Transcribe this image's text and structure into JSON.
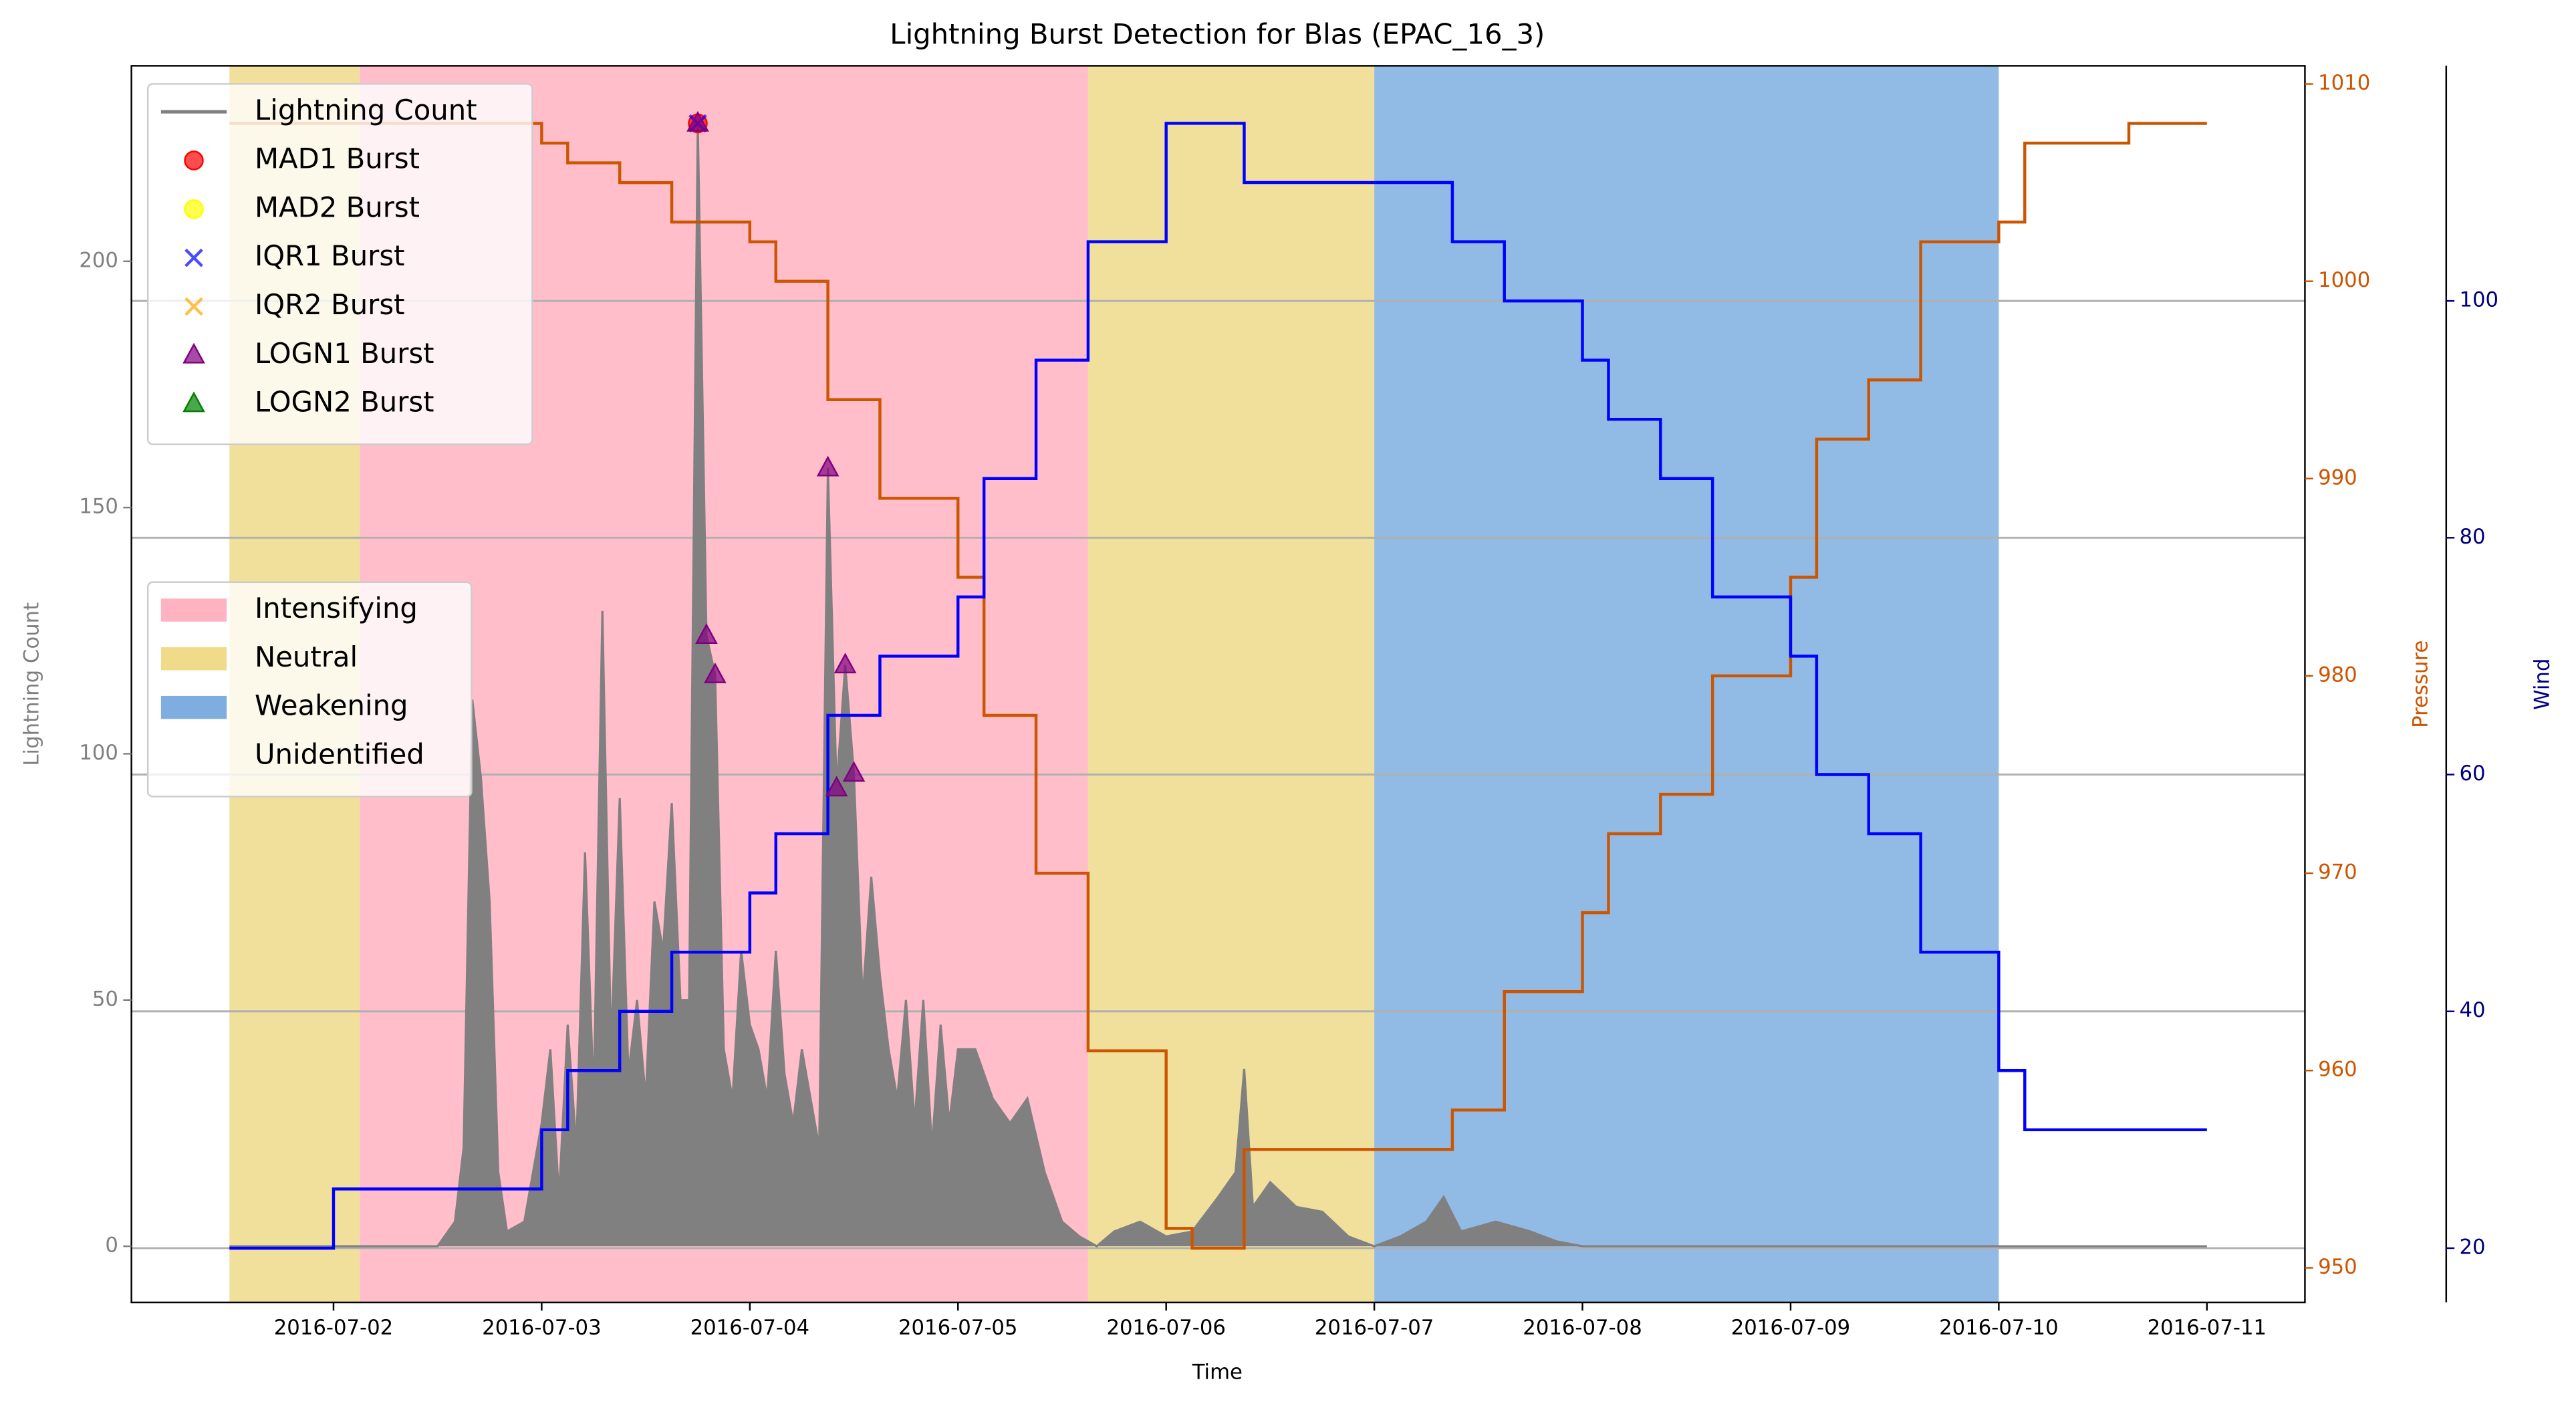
{
  "chart_data": {
    "type": "line",
    "title": "Lightning Burst Detection for Blas (EPAC_16_3)",
    "xlabel": "Time",
    "ylabel": "Lightning Count",
    "y2label": "Pressure",
    "y3label": "Wind",
    "xlim": [
      "2016-07-01T00:42",
      "2016-07-11T11:18"
    ],
    "xticks": [
      "2016-07-02",
      "2016-07-03",
      "2016-07-04",
      "2016-07-05",
      "2016-07-06",
      "2016-07-07",
      "2016-07-08",
      "2016-07-09",
      "2016-07-10",
      "2016-07-11"
    ],
    "ylim": [
      -11.4,
      239.7
    ],
    "yticks": [
      0,
      50,
      100,
      150,
      200
    ],
    "y2lim": [
      948.25,
      1010.92
    ],
    "y2ticks": [
      950,
      960,
      970,
      980,
      990,
      1000,
      1010
    ],
    "y3lim": [
      15.42,
      119.86
    ],
    "y3ticks": [
      20,
      40,
      60,
      80,
      100
    ],
    "ycolor": "gray",
    "y2color": "#cc5500",
    "y3color": "navy",
    "grid_axis": "y3",
    "legend_loc": "upper left",
    "regions_legend_loc": "center left",
    "regions": [
      {
        "name": "Intensifying",
        "color": "#ffb3c1",
        "spans": [
          [
            "2016-07-02T03:00",
            "2016-07-05T15:00"
          ]
        ]
      },
      {
        "name": "Neutral",
        "color": "#efdb8a",
        "spans": [
          [
            "2016-07-01T12:00",
            "2016-07-02T03:00"
          ],
          [
            "2016-07-05T15:00",
            "2016-07-07T00:00"
          ]
        ]
      },
      {
        "name": "Weakening",
        "color": "#7eaee0",
        "spans": [
          [
            "2016-07-07T00:00",
            "2016-07-10T00:00"
          ]
        ]
      },
      {
        "name": "Unidentified",
        "color": "#ffffff",
        "spans": []
      }
    ],
    "series": [
      {
        "name": "Lightning Count",
        "color": "gray",
        "axis": "y",
        "style": "area",
        "x": [
          "2016-07-01T12:00",
          "2016-07-02T12:00",
          "2016-07-02T14:00",
          "2016-07-02T15:00",
          "2016-07-02T16:00",
          "2016-07-02T17:00",
          "2016-07-02T18:00",
          "2016-07-02T19:00",
          "2016-07-02T20:00",
          "2016-07-02T22:00",
          "2016-07-03T00:00",
          "2016-07-03T01:00",
          "2016-07-03T02:00",
          "2016-07-03T03:00",
          "2016-07-03T04:00",
          "2016-07-03T05:00",
          "2016-07-03T06:00",
          "2016-07-03T07:00",
          "2016-07-03T08:00",
          "2016-07-03T09:00",
          "2016-07-03T10:00",
          "2016-07-03T11:00",
          "2016-07-03T12:00",
          "2016-07-03T13:00",
          "2016-07-03T14:00",
          "2016-07-03T15:00",
          "2016-07-03T16:00",
          "2016-07-03T17:00",
          "2016-07-03T18:00",
          "2016-07-03T19:00",
          "2016-07-03T20:00",
          "2016-07-03T21:00",
          "2016-07-03T22:00",
          "2016-07-03T23:00",
          "2016-07-04T00:00",
          "2016-07-04T01:00",
          "2016-07-04T02:00",
          "2016-07-04T03:00",
          "2016-07-04T04:00",
          "2016-07-04T05:00",
          "2016-07-04T06:00",
          "2016-07-04T07:00",
          "2016-07-04T08:00",
          "2016-07-04T09:00",
          "2016-07-04T10:00",
          "2016-07-04T11:00",
          "2016-07-04T12:00",
          "2016-07-04T13:00",
          "2016-07-04T14:00",
          "2016-07-04T15:00",
          "2016-07-04T16:00",
          "2016-07-04T17:00",
          "2016-07-04T18:00",
          "2016-07-04T19:00",
          "2016-07-04T20:00",
          "2016-07-04T21:00",
          "2016-07-04T22:00",
          "2016-07-04T23:00",
          "2016-07-05T00:00",
          "2016-07-05T02:00",
          "2016-07-05T04:00",
          "2016-07-05T06:00",
          "2016-07-05T08:00",
          "2016-07-05T10:00",
          "2016-07-05T12:00",
          "2016-07-05T14:00",
          "2016-07-05T16:00",
          "2016-07-05T18:00",
          "2016-07-05T21:00",
          "2016-07-06T00:00",
          "2016-07-06T03:00",
          "2016-07-06T06:00",
          "2016-07-06T08:00",
          "2016-07-06T09:00",
          "2016-07-06T10:00",
          "2016-07-06T12:00",
          "2016-07-06T15:00",
          "2016-07-06T18:00",
          "2016-07-06T21:00",
          "2016-07-07T00:00",
          "2016-07-07T03:00",
          "2016-07-07T06:00",
          "2016-07-07T08:00",
          "2016-07-07T10:00",
          "2016-07-07T14:00",
          "2016-07-07T18:00",
          "2016-07-07T21:00",
          "2016-07-08T00:00",
          "2016-07-09T00:00",
          "2016-07-11T00:00"
        ],
        "values": [
          0,
          0,
          5,
          20,
          111,
          95,
          70,
          15,
          3,
          5,
          25,
          40,
          10,
          45,
          20,
          80,
          30,
          129,
          40,
          91,
          35,
          50,
          30,
          70,
          60,
          90,
          50,
          50,
          228,
          124,
          116,
          40,
          30,
          60,
          45,
          40,
          30,
          60,
          35,
          25,
          40,
          30,
          20,
          158,
          93,
          118,
          96,
          50,
          75,
          55,
          40,
          30,
          50,
          25,
          50,
          20,
          45,
          25,
          40,
          40,
          30,
          25,
          30,
          15,
          5,
          2,
          0,
          3,
          5,
          2,
          3,
          10,
          15,
          36,
          8,
          13,
          8,
          7,
          2,
          0,
          2,
          5,
          10,
          3,
          5,
          3,
          1,
          0,
          0,
          0
        ]
      },
      {
        "color": "#cc5500",
        "axis": "y2",
        "style": "steps-post",
        "x": [
          "2016-07-01T12:00",
          "2016-07-03T00:00",
          "2016-07-03T03:00",
          "2016-07-03T09:00",
          "2016-07-03T15:00",
          "2016-07-04T00:00",
          "2016-07-04T03:00",
          "2016-07-04T09:00",
          "2016-07-04T15:00",
          "2016-07-05T00:00",
          "2016-07-05T03:00",
          "2016-07-05T09:00",
          "2016-07-05T15:00",
          "2016-07-06T00:00",
          "2016-07-06T03:00",
          "2016-07-06T09:00",
          "2016-07-07T09:00",
          "2016-07-07T15:00",
          "2016-07-08T00:00",
          "2016-07-08T03:00",
          "2016-07-08T09:00",
          "2016-07-08T15:00",
          "2016-07-09T00:00",
          "2016-07-09T03:00",
          "2016-07-09T09:00",
          "2016-07-09T15:00",
          "2016-07-10T00:00",
          "2016-07-10T03:00",
          "2016-07-10T15:00",
          "2016-07-11T00:00"
        ],
        "values": [
          1008,
          1007,
          1006,
          1005,
          1003,
          1002,
          1000,
          994,
          989,
          985,
          978,
          970,
          961,
          952,
          951,
          956,
          958,
          964,
          968,
          972,
          974,
          980,
          985,
          992,
          995,
          1002,
          1003,
          1007,
          1008,
          1008
        ]
      },
      {
        "color": "blue",
        "axis": "y3",
        "style": "steps-post",
        "x": [
          "2016-07-01T12:00",
          "2016-07-02T00:00",
          "2016-07-03T00:00",
          "2016-07-03T03:00",
          "2016-07-03T09:00",
          "2016-07-03T15:00",
          "2016-07-04T00:00",
          "2016-07-04T03:00",
          "2016-07-04T09:00",
          "2016-07-04T15:00",
          "2016-07-05T00:00",
          "2016-07-05T03:00",
          "2016-07-05T09:00",
          "2016-07-05T15:00",
          "2016-07-06T00:00",
          "2016-07-06T09:00",
          "2016-07-07T09:00",
          "2016-07-07T15:00",
          "2016-07-08T00:00",
          "2016-07-08T03:00",
          "2016-07-08T09:00",
          "2016-07-08T15:00",
          "2016-07-09T00:00",
          "2016-07-09T03:00",
          "2016-07-09T09:00",
          "2016-07-09T15:00",
          "2016-07-10T00:00",
          "2016-07-10T03:00",
          "2016-07-11T00:00"
        ],
        "values": [
          20,
          25,
          30,
          35,
          40,
          45,
          50,
          55,
          65,
          70,
          75,
          85,
          95,
          105,
          115,
          110,
          105,
          100,
          95,
          90,
          85,
          75,
          70,
          60,
          55,
          45,
          35,
          30,
          30
        ]
      },
      {
        "name": "MAD1 Burst",
        "color": "red",
        "axis": "y",
        "style": "marker",
        "marker": "circle",
        "x": [
          "2016-07-03T18:00"
        ],
        "values": [
          228
        ]
      },
      {
        "name": "MAD2 Burst",
        "color": "yellow",
        "axis": "y",
        "style": "marker",
        "marker": "circle",
        "x": [],
        "values": []
      },
      {
        "name": "IQR1 Burst",
        "color": "blue",
        "axis": "y",
        "style": "marker",
        "marker": "x",
        "x": [
          "2016-07-03T18:00"
        ],
        "values": [
          228
        ]
      },
      {
        "name": "IQR2 Burst",
        "color": "orange",
        "axis": "y",
        "style": "marker",
        "marker": "x",
        "x": [],
        "values": []
      },
      {
        "name": "LOGN1 Burst",
        "color": "purple",
        "axis": "y",
        "style": "marker",
        "marker": "triangle",
        "x": [
          "2016-07-03T18:00",
          "2016-07-03T19:00",
          "2016-07-03T20:00",
          "2016-07-04T09:00",
          "2016-07-04T10:00",
          "2016-07-04T11:00",
          "2016-07-04T12:00"
        ],
        "values": [
          228,
          124,
          116,
          158,
          93,
          118,
          96
        ]
      },
      {
        "name": "LOGN2 Burst",
        "color": "green",
        "axis": "y",
        "style": "marker",
        "marker": "triangle",
        "x": [],
        "values": []
      }
    ]
  }
}
